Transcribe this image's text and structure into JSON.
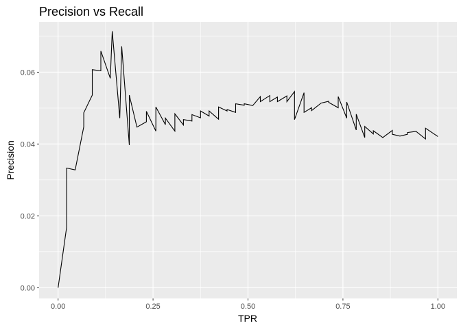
{
  "chart_data": {
    "type": "line",
    "title": "Precision vs Recall",
    "xlabel": "TPR",
    "ylabel": "Precision",
    "xlim": [
      -0.05,
      1.05
    ],
    "ylim": [
      -0.003,
      0.074
    ],
    "x_ticks": [
      0.0,
      0.25,
      0.5,
      0.75,
      1.0
    ],
    "x_tick_labels": [
      "0.00",
      "0.25",
      "0.50",
      "0.75",
      "1.00"
    ],
    "x_minor_ticks": [
      0.125,
      0.375,
      0.625,
      0.875
    ],
    "y_ticks": [
      0.0,
      0.02,
      0.04,
      0.06
    ],
    "y_tick_labels": [
      "0.00",
      "0.02",
      "0.04",
      "0.06"
    ],
    "y_minor_ticks": [
      0.01,
      0.03,
      0.05,
      0.07
    ],
    "grid": true,
    "panel_background": "#ebebeb",
    "grid_color": "#ffffff",
    "line_color": "#000000",
    "series": [
      {
        "x": [
          0.0,
          0.0225,
          0.0225,
          0.045,
          0.0675,
          0.0675,
          0.09,
          0.09,
          0.1125,
          0.1125,
          0.1375,
          0.1425,
          0.1625,
          0.1675,
          0.1875,
          0.1875,
          0.2075,
          0.2325,
          0.2325,
          0.2575,
          0.2575,
          0.2825,
          0.2825,
          0.3075,
          0.3075,
          0.33,
          0.33,
          0.3525,
          0.3525,
          0.375,
          0.375,
          0.3975,
          0.3975,
          0.4225,
          0.4225,
          0.445,
          0.445,
          0.4675,
          0.4675,
          0.49,
          0.49,
          0.5125,
          0.5325,
          0.5325,
          0.5575,
          0.5575,
          0.5775,
          0.5775,
          0.6025,
          0.6025,
          0.6225,
          0.6225,
          0.6475,
          0.6475,
          0.6675,
          0.6675,
          0.6925,
          0.7125,
          0.7125,
          0.7375,
          0.7375,
          0.76,
          0.76,
          0.785,
          0.785,
          0.8075,
          0.8075,
          0.83,
          0.83,
          0.855,
          0.88,
          0.88,
          0.9,
          0.92,
          0.92,
          0.9425,
          0.9675,
          0.9675,
          1.0
        ],
        "y": [
          0.0,
          0.0168,
          0.0333,
          0.0328,
          0.0448,
          0.0487,
          0.0536,
          0.0607,
          0.0604,
          0.0659,
          0.0583,
          0.0714,
          0.0472,
          0.0672,
          0.0397,
          0.0536,
          0.0447,
          0.0462,
          0.0491,
          0.0436,
          0.0503,
          0.0454,
          0.0472,
          0.0436,
          0.0484,
          0.0453,
          0.0468,
          0.0464,
          0.0482,
          0.0473,
          0.0492,
          0.0478,
          0.0492,
          0.0469,
          0.0503,
          0.0492,
          0.0496,
          0.0488,
          0.0512,
          0.0508,
          0.0512,
          0.0507,
          0.0532,
          0.0518,
          0.0535,
          0.0518,
          0.0531,
          0.0518,
          0.0534,
          0.0518,
          0.0546,
          0.0468,
          0.0543,
          0.0488,
          0.0501,
          0.0493,
          0.0514,
          0.0519,
          0.0516,
          0.0501,
          0.0532,
          0.0472,
          0.0517,
          0.0439,
          0.0483,
          0.0418,
          0.0449,
          0.0428,
          0.0437,
          0.0418,
          0.0438,
          0.0427,
          0.0422,
          0.0427,
          0.0432,
          0.0435,
          0.0414,
          0.0444,
          0.0421
        ]
      }
    ]
  }
}
